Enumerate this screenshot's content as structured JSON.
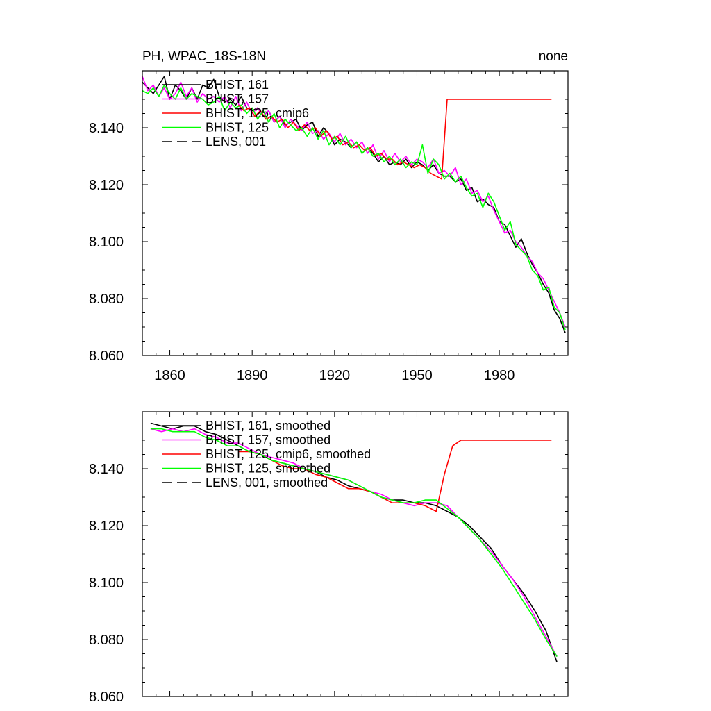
{
  "chart_data": [
    {
      "type": "line",
      "title_left": "PH, WPAC_18S-18N",
      "title_right": "none",
      "xlabel": "",
      "ylabel": "",
      "xlim": [
        1850,
        2005
      ],
      "ylim": [
        8.06,
        8.16
      ],
      "xticks": [
        1860,
        1890,
        1920,
        1950,
        1980
      ],
      "yticks": [
        8.06,
        8.08,
        8.1,
        8.12,
        8.14
      ],
      "ytick_labels": [
        "8.060",
        "8.080",
        "8.100",
        "8.120",
        "8.140"
      ],
      "show_xtick_labels": true,
      "grid": false,
      "legend_placement": "top-left",
      "series": [
        {
          "name": "BHIST, 161",
          "color": "#000000",
          "style": "solid",
          "x": [
            1850,
            1852,
            1854,
            1856,
            1858,
            1860,
            1862,
            1864,
            1866,
            1868,
            1870,
            1872,
            1874,
            1876,
            1878,
            1880,
            1882,
            1884,
            1886,
            1888,
            1890,
            1892,
            1894,
            1896,
            1898,
            1900,
            1902,
            1904,
            1906,
            1908,
            1910,
            1912,
            1914,
            1916,
            1918,
            1920,
            1922,
            1924,
            1926,
            1928,
            1930,
            1932,
            1934,
            1936,
            1938,
            1940,
            1942,
            1944,
            1946,
            1948,
            1950,
            1952,
            1954,
            1956,
            1958,
            1960,
            1962,
            1964,
            1966,
            1968,
            1970,
            1972,
            1974,
            1976,
            1978,
            1980,
            1982,
            1984,
            1986,
            1988,
            1990,
            1992,
            1994,
            1996,
            1998,
            2000,
            2002,
            2004
          ],
          "values": [
            8.156,
            8.154,
            8.152,
            8.155,
            8.158,
            8.15,
            8.155,
            8.153,
            8.15,
            8.154,
            8.15,
            8.155,
            8.154,
            8.157,
            8.151,
            8.149,
            8.15,
            8.148,
            8.151,
            8.147,
            8.146,
            8.147,
            8.144,
            8.146,
            8.142,
            8.144,
            8.141,
            8.142,
            8.143,
            8.139,
            8.141,
            8.142,
            8.137,
            8.14,
            8.138,
            8.134,
            8.136,
            8.135,
            8.133,
            8.135,
            8.131,
            8.133,
            8.131,
            8.128,
            8.13,
            8.127,
            8.128,
            8.127,
            8.129,
            8.126,
            8.128,
            8.127,
            8.125,
            8.127,
            8.124,
            8.123,
            8.123,
            8.121,
            8.122,
            8.118,
            8.119,
            8.114,
            8.115,
            8.113,
            8.112,
            8.107,
            8.106,
            8.102,
            8.098,
            8.101,
            8.096,
            8.092,
            8.089,
            8.085,
            8.082,
            8.076,
            8.073,
            8.068
          ]
        },
        {
          "name": "BHIST, 157",
          "color": "#ff00ff",
          "style": "solid",
          "x": [
            1850,
            1852,
            1854,
            1856,
            1858,
            1860,
            1862,
            1864,
            1866,
            1868,
            1870,
            1872,
            1874,
            1876,
            1878,
            1880,
            1882,
            1884,
            1886,
            1888,
            1890,
            1892,
            1894,
            1896,
            1898,
            1900,
            1902,
            1904,
            1906,
            1908,
            1910,
            1912,
            1914,
            1916,
            1918,
            1920,
            1922,
            1924,
            1926,
            1928,
            1930,
            1932,
            1934,
            1936,
            1938,
            1940,
            1942,
            1944,
            1946,
            1948,
            1950,
            1952,
            1954,
            1956,
            1958,
            1960,
            1962,
            1964,
            1966,
            1968,
            1970,
            1972,
            1974,
            1976,
            1978,
            1980,
            1982,
            1984,
            1986,
            1988,
            1990,
            1992,
            1994,
            1996,
            1998,
            2000,
            2002,
            2004
          ],
          "values": [
            8.158,
            8.153,
            8.155,
            8.151,
            8.154,
            8.15,
            8.152,
            8.156,
            8.151,
            8.154,
            8.149,
            8.152,
            8.15,
            8.151,
            8.149,
            8.151,
            8.147,
            8.151,
            8.146,
            8.149,
            8.145,
            8.147,
            8.144,
            8.146,
            8.142,
            8.144,
            8.14,
            8.143,
            8.141,
            8.139,
            8.142,
            8.138,
            8.139,
            8.136,
            8.138,
            8.135,
            8.138,
            8.134,
            8.136,
            8.133,
            8.135,
            8.131,
            8.134,
            8.129,
            8.132,
            8.128,
            8.131,
            8.128,
            8.13,
            8.127,
            8.129,
            8.128,
            8.126,
            8.129,
            8.124,
            8.125,
            8.123,
            8.126,
            8.12,
            8.122,
            8.117,
            8.118,
            8.114,
            8.116,
            8.111,
            8.107,
            8.103,
            8.104,
            8.1,
            8.098,
            8.095,
            8.093,
            8.089,
            8.087,
            8.083,
            8.079,
            8.075,
            8.07
          ]
        },
        {
          "name": "BHIST, 125, cmip6",
          "color": "#ff0000",
          "style": "solid",
          "x": [
            1885,
            1887,
            1889,
            1891,
            1893,
            1895,
            1897,
            1899,
            1901,
            1903,
            1905,
            1907,
            1909,
            1911,
            1913,
            1915,
            1917,
            1919,
            1921,
            1923,
            1925,
            1927,
            1929,
            1931,
            1933,
            1935,
            1937,
            1939,
            1941,
            1943,
            1945,
            1947,
            1949,
            1951,
            1953,
            1955,
            1957,
            1959,
            1961,
            1963,
            1965,
            1970,
            1975,
            1980,
            1985,
            1990,
            1995,
            1999
          ],
          "values": [
            8.148,
            8.146,
            8.147,
            8.144,
            8.146,
            8.143,
            8.144,
            8.142,
            8.143,
            8.14,
            8.142,
            8.139,
            8.141,
            8.139,
            8.14,
            8.137,
            8.139,
            8.136,
            8.137,
            8.134,
            8.135,
            8.133,
            8.134,
            8.132,
            8.133,
            8.13,
            8.131,
            8.129,
            8.129,
            8.127,
            8.128,
            8.127,
            8.126,
            8.127,
            8.126,
            8.124,
            8.123,
            8.122,
            8.15,
            8.15,
            8.15,
            8.15,
            8.15,
            8.15,
            8.15,
            8.15,
            8.15,
            8.15
          ]
        },
        {
          "name": "BHIST, 125",
          "color": "#00ff00",
          "style": "solid",
          "x": [
            1850,
            1852,
            1854,
            1856,
            1858,
            1860,
            1862,
            1864,
            1866,
            1868,
            1870,
            1872,
            1874,
            1876,
            1878,
            1880,
            1882,
            1884,
            1886,
            1888,
            1890,
            1892,
            1894,
            1896,
            1898,
            1900,
            1902,
            1904,
            1906,
            1908,
            1910,
            1912,
            1914,
            1916,
            1918,
            1920,
            1922,
            1924,
            1926,
            1928,
            1930,
            1932,
            1934,
            1936,
            1938,
            1940,
            1942,
            1944,
            1946,
            1948,
            1950,
            1952,
            1954,
            1956,
            1958,
            1960,
            1962,
            1964,
            1966,
            1968,
            1970,
            1972,
            1974,
            1976,
            1978,
            1980,
            1982,
            1984,
            1986,
            1988,
            1990,
            1992,
            1994,
            1996,
            1998,
            2000,
            2002,
            2004
          ],
          "values": [
            8.153,
            8.152,
            8.154,
            8.151,
            8.155,
            8.152,
            8.15,
            8.154,
            8.15,
            8.152,
            8.151,
            8.15,
            8.148,
            8.149,
            8.151,
            8.146,
            8.149,
            8.147,
            8.148,
            8.145,
            8.147,
            8.143,
            8.146,
            8.142,
            8.145,
            8.14,
            8.143,
            8.141,
            8.139,
            8.14,
            8.137,
            8.14,
            8.136,
            8.139,
            8.134,
            8.137,
            8.134,
            8.137,
            8.133,
            8.135,
            8.131,
            8.133,
            8.13,
            8.131,
            8.128,
            8.13,
            8.127,
            8.129,
            8.126,
            8.128,
            8.127,
            8.134,
            8.124,
            8.129,
            8.127,
            8.122,
            8.124,
            8.121,
            8.123,
            8.119,
            8.116,
            8.117,
            8.112,
            8.117,
            8.114,
            8.109,
            8.104,
            8.107,
            8.099,
            8.097,
            8.095,
            8.09,
            8.088,
            8.083,
            8.084,
            8.077,
            8.075,
            8.069
          ]
        },
        {
          "name": "LENS, 001",
          "color": "#000000",
          "style": "dashed",
          "x": [],
          "values": []
        }
      ]
    },
    {
      "type": "line",
      "title_left": "",
      "title_right": "",
      "xlabel": "",
      "ylabel": "",
      "xlim": [
        1850,
        2005
      ],
      "ylim": [
        8.06,
        8.16
      ],
      "xticks": [
        1860,
        1890,
        1920,
        1950,
        1980
      ],
      "yticks": [
        8.06,
        8.08,
        8.1,
        8.12,
        8.14
      ],
      "ytick_labels": [
        "8.060",
        "8.080",
        "8.100",
        "8.120",
        "8.140"
      ],
      "show_xtick_labels": false,
      "grid": false,
      "legend_placement": "top-left",
      "series": [
        {
          "name": "BHIST, 161, smoothed",
          "color": "#000000",
          "style": "solid",
          "x": [
            1853,
            1857,
            1861,
            1865,
            1869,
            1873,
            1877,
            1881,
            1885,
            1889,
            1893,
            1897,
            1901,
            1905,
            1909,
            1913,
            1917,
            1921,
            1925,
            1929,
            1933,
            1937,
            1941,
            1945,
            1949,
            1953,
            1957,
            1961,
            1965,
            1969,
            1973,
            1977,
            1981,
            1985,
            1989,
            1993,
            1997,
            2001
          ],
          "values": [
            8.156,
            8.155,
            8.154,
            8.155,
            8.155,
            8.153,
            8.152,
            8.15,
            8.148,
            8.146,
            8.145,
            8.143,
            8.142,
            8.141,
            8.14,
            8.139,
            8.137,
            8.136,
            8.134,
            8.133,
            8.132,
            8.13,
            8.129,
            8.129,
            8.128,
            8.128,
            8.127,
            8.125,
            8.123,
            8.12,
            8.116,
            8.112,
            8.106,
            8.101,
            8.096,
            8.09,
            8.083,
            8.072
          ]
        },
        {
          "name": "BHIST, 157, smoothed",
          "color": "#ff00ff",
          "style": "solid",
          "x": [
            1853,
            1857,
            1861,
            1865,
            1869,
            1873,
            1877,
            1881,
            1885,
            1889,
            1893,
            1897,
            1901,
            1905,
            1909,
            1913,
            1917,
            1921,
            1925,
            1929,
            1933,
            1937,
            1941,
            1945,
            1949,
            1953,
            1957,
            1961,
            1965,
            1969,
            1973,
            1977,
            1981,
            1985,
            1989,
            1993,
            1997,
            2001
          ],
          "values": [
            8.154,
            8.153,
            8.154,
            8.153,
            8.154,
            8.152,
            8.151,
            8.149,
            8.149,
            8.147,
            8.145,
            8.144,
            8.143,
            8.142,
            8.14,
            8.139,
            8.138,
            8.137,
            8.136,
            8.134,
            8.132,
            8.131,
            8.129,
            8.128,
            8.127,
            8.128,
            8.128,
            8.127,
            8.123,
            8.119,
            8.115,
            8.111,
            8.106,
            8.101,
            8.095,
            8.088,
            8.081,
            8.074
          ]
        },
        {
          "name": "BHIST, 125, cmip6, smoothed",
          "color": "#ff0000",
          "style": "solid",
          "x": [
            1885,
            1889,
            1893,
            1897,
            1901,
            1905,
            1909,
            1913,
            1917,
            1921,
            1925,
            1929,
            1933,
            1937,
            1941,
            1945,
            1949,
            1953,
            1957,
            1960,
            1963,
            1966,
            1970,
            1975,
            1980,
            1985,
            1990,
            1995,
            1999
          ],
          "values": [
            8.146,
            8.146,
            8.145,
            8.143,
            8.141,
            8.14,
            8.14,
            8.138,
            8.137,
            8.135,
            8.133,
            8.133,
            8.132,
            8.13,
            8.128,
            8.128,
            8.128,
            8.127,
            8.125,
            8.138,
            8.148,
            8.15,
            8.15,
            8.15,
            8.15,
            8.15,
            8.15,
            8.15,
            8.15
          ]
        },
        {
          "name": "BHIST, 125, smoothed",
          "color": "#00ff00",
          "style": "solid",
          "x": [
            1853,
            1857,
            1861,
            1865,
            1869,
            1873,
            1877,
            1881,
            1885,
            1889,
            1893,
            1897,
            1901,
            1905,
            1909,
            1913,
            1917,
            1921,
            1925,
            1929,
            1933,
            1937,
            1941,
            1945,
            1949,
            1953,
            1957,
            1961,
            1965,
            1969,
            1973,
            1977,
            1981,
            1985,
            1989,
            1993,
            1997,
            2001
          ],
          "values": [
            8.154,
            8.154,
            8.153,
            8.153,
            8.153,
            8.151,
            8.15,
            8.148,
            8.148,
            8.146,
            8.145,
            8.143,
            8.142,
            8.141,
            8.14,
            8.139,
            8.138,
            8.137,
            8.136,
            8.134,
            8.132,
            8.13,
            8.129,
            8.128,
            8.128,
            8.129,
            8.129,
            8.126,
            8.123,
            8.119,
            8.115,
            8.11,
            8.105,
            8.099,
            8.093,
            8.087,
            8.08,
            8.074
          ]
        },
        {
          "name": "LENS, 001, smoothed",
          "color": "#000000",
          "style": "dashed",
          "x": [],
          "values": []
        }
      ]
    }
  ]
}
